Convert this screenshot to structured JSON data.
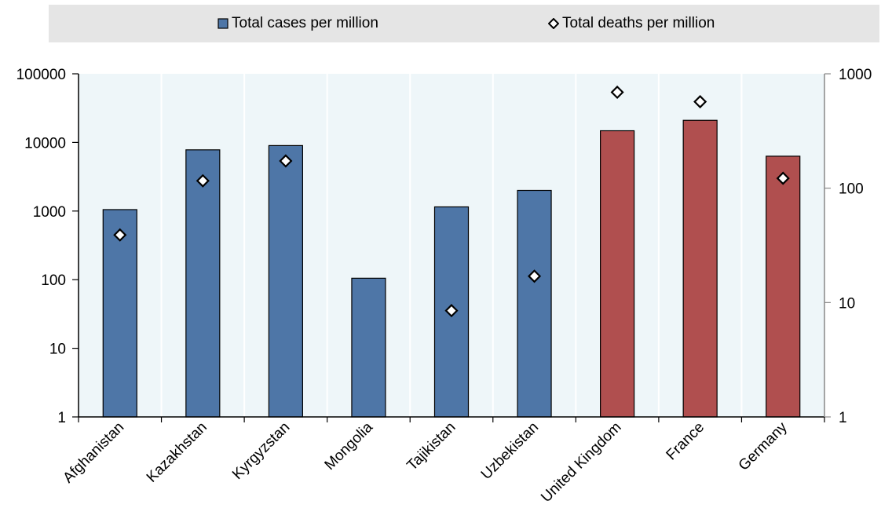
{
  "legend": {
    "cases_label": "Total cases per million",
    "deaths_label": "Total deaths per million"
  },
  "chart_data": {
    "type": "bar",
    "categories": [
      "Afghanistan",
      "Kazakhstan",
      "Kyrgyzstan",
      "Mongolia",
      "Tajikistan",
      "Uzbekistan",
      "United Kingdom",
      "France",
      "Germany"
    ],
    "series": [
      {
        "name": "Total cases per million",
        "axis": "left",
        "type": "bar",
        "values": [
          1050,
          7800,
          9000,
          105,
          1150,
          2000,
          14800,
          21000,
          6300
        ]
      },
      {
        "name": "Total deaths per million",
        "axis": "right",
        "type": "marker",
        "values": [
          39,
          116,
          173,
          null,
          8.5,
          17,
          690,
          570,
          122
        ]
      }
    ],
    "bar_colors": [
      "#4e76a7",
      "#4e76a7",
      "#4e76a7",
      "#4e76a7",
      "#4e76a7",
      "#4e76a7",
      "#b04f4f",
      "#b04f4f",
      "#b04f4f"
    ],
    "y_left": {
      "scale": "log",
      "ylim": [
        1,
        100000
      ],
      "ticks": [
        "1",
        "10",
        "100",
        "1000",
        "10000",
        "100000"
      ]
    },
    "y_right": {
      "scale": "log",
      "ylim": [
        1,
        1000
      ],
      "ticks": [
        "1",
        "10",
        "100",
        "1000"
      ]
    },
    "legend_position": "top",
    "grid": "vertical",
    "plot_background": "#eef6f9"
  }
}
